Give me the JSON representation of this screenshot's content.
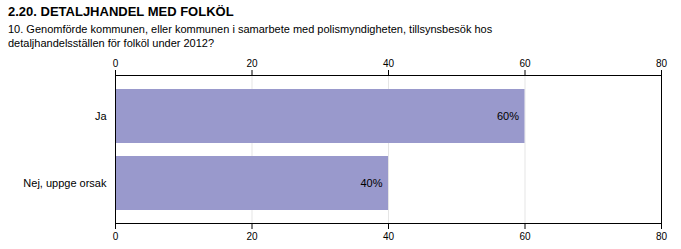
{
  "chart_data": {
    "type": "bar",
    "title": "2.20. DETALJHANDEL MED FOLKÖL",
    "subtitle": "10. Genomförde kommunen, eller kommunen i samarbete med polismyndigheten, tillsynsbesök hos\ndetaljhandelsställen för folköl under 2012?",
    "categories": [
      "Nej, uppge orsak",
      "Ja"
    ],
    "values": [
      40,
      60
    ],
    "value_labels": [
      "40%",
      "60%"
    ],
    "data_labels": true,
    "orientation": "horizontal",
    "color": "#9999CC",
    "xlim": [
      0,
      80
    ],
    "xticks": [
      0,
      20,
      40,
      60,
      80
    ],
    "grid": true
  }
}
